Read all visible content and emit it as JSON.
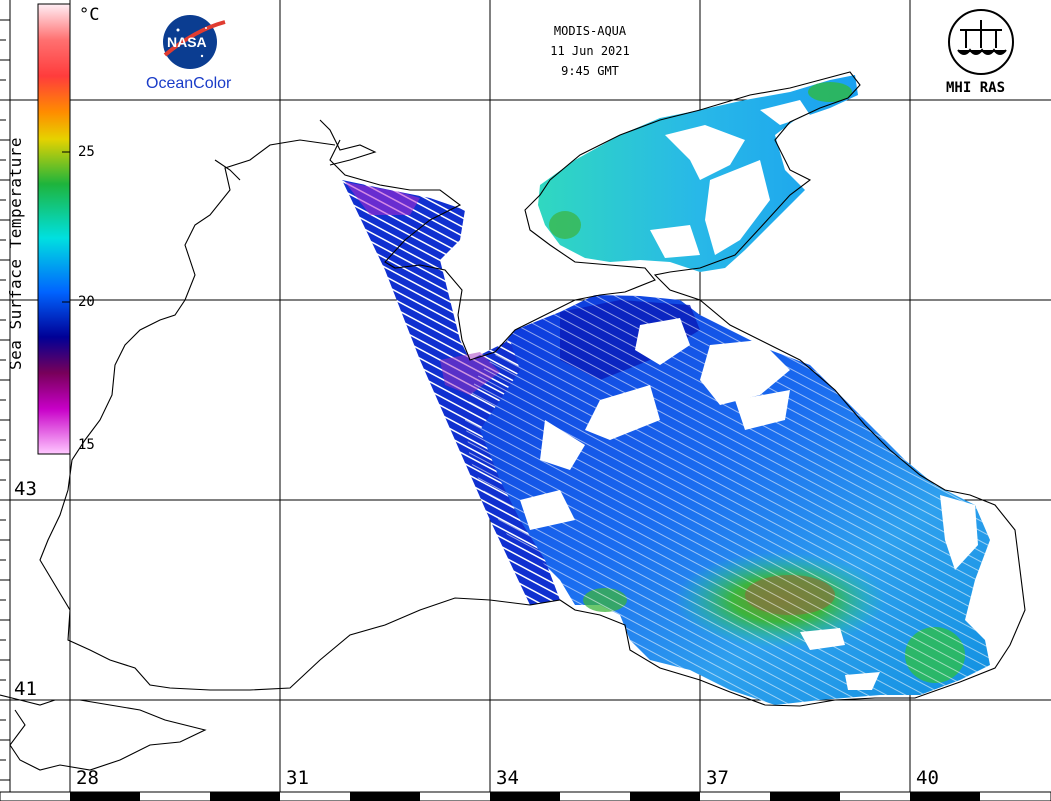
{
  "header": {
    "satellite": "MODIS-AQUA",
    "date": "11 Jun 2021",
    "time": "9:45 GMT"
  },
  "logos": {
    "nasa": "NASA",
    "oceancolor": "OceanColor",
    "mhi": "MHI RAS"
  },
  "colorbar": {
    "title": "Sea Surface Temperature",
    "unit": "°C",
    "ticks": [
      "25",
      "20",
      "15"
    ],
    "colors": [
      "#ffe6f0",
      "#ff8080",
      "#ff3c3c",
      "#ff8c00",
      "#e6d200",
      "#1eb43c",
      "#00dcdc",
      "#0064ff",
      "#000096",
      "#78005a",
      "#c800c8",
      "#ffc8ff"
    ]
  },
  "map": {
    "latitude_labels": [
      "43",
      "41"
    ],
    "longitude_labels": [
      "28",
      "31",
      "34",
      "37",
      "40"
    ],
    "land_color": "#ffffff",
    "cloud_color": "#ffffff"
  }
}
